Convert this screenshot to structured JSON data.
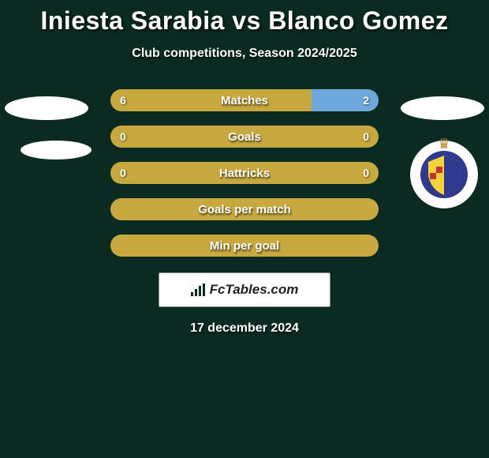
{
  "title": "Iniesta Sarabia vs Blanco Gomez",
  "subtitle": "Club competitions, Season 2024/2025",
  "colors": {
    "left_bar": "#c7a93f",
    "right_bar": "#6fa8dc",
    "full_bar": "#c7a93f",
    "background": "#0b2b22"
  },
  "stats": [
    {
      "label": "Matches",
      "left_value": "6",
      "right_value": "2",
      "left_pct": 75,
      "right_pct": 25,
      "type": "split"
    },
    {
      "label": "Goals",
      "left_value": "0",
      "right_value": "0",
      "left_pct": 50,
      "right_pct": 50,
      "type": "split_full_left"
    },
    {
      "label": "Hattricks",
      "left_value": "0",
      "right_value": "0",
      "left_pct": 50,
      "right_pct": 50,
      "type": "split_full_left"
    },
    {
      "label": "Goals per match",
      "type": "full"
    },
    {
      "label": "Min per goal",
      "type": "full"
    }
  ],
  "logo_text": "FcTables.com",
  "date": "17 december 2024",
  "crest": {
    "outer_ring": "#2f3a8f",
    "inner_fill": "#f6d23a",
    "accent": "#c2342e"
  }
}
